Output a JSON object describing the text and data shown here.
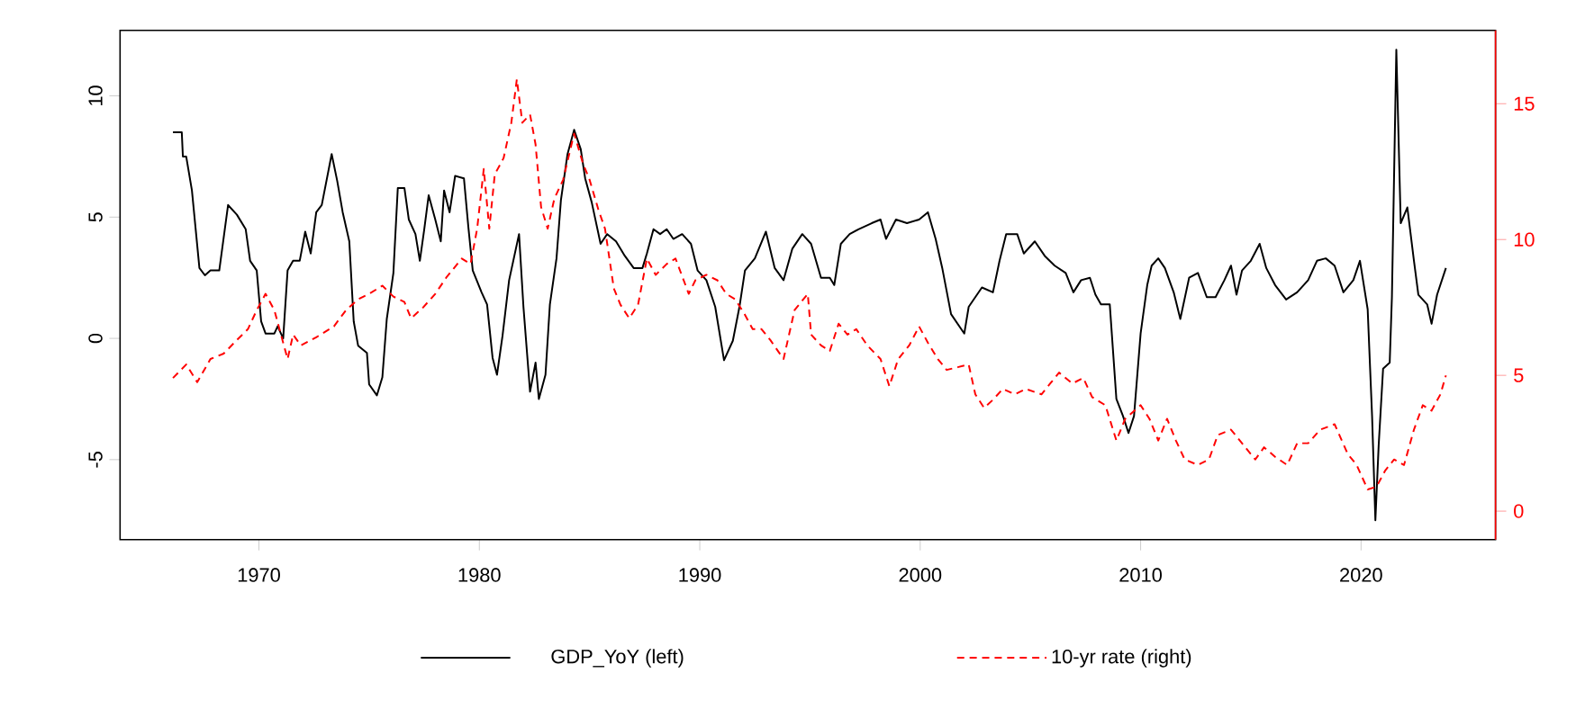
{
  "chart_data": {
    "type": "line",
    "xlim": [
      1963.7,
      2026.1
    ],
    "xticks": [
      1970,
      1980,
      1990,
      2000,
      2010,
      2020
    ],
    "ylim": [
      -8.3,
      12.7
    ],
    "yticks": [
      -5,
      0,
      5,
      10
    ],
    "y2lim": [
      -1.05,
      17.7
    ],
    "y2ticks": [
      0,
      5,
      10,
      15
    ],
    "legend": "bottom",
    "series": [
      {
        "name": "GDP_YoY (left)",
        "color": "#000000",
        "line_style": "solid",
        "x": [
          1966.1,
          1966.5,
          1966.55,
          1966.7,
          1966.96,
          1967.3,
          1967.55,
          1967.8,
          1968.2,
          1968.6,
          1969.0,
          1969.4,
          1969.6,
          1969.9,
          1970.1,
          1970.3,
          1970.7,
          1970.85,
          1971.1,
          1971.3,
          1971.55,
          1971.85,
          1972.1,
          1972.35,
          1972.6,
          1972.85,
          1973.3,
          1973.55,
          1973.8,
          1974.1,
          1974.3,
          1974.5,
          1974.9,
          1975.0,
          1975.35,
          1975.6,
          1975.8,
          1976.1,
          1976.3,
          1976.6,
          1976.8,
          1977.1,
          1977.3,
          1977.5,
          1977.7,
          1978.0,
          1978.25,
          1978.4,
          1978.65,
          1978.9,
          1979.3,
          1979.5,
          1979.7,
          1980.1,
          1980.35,
          1980.6,
          1980.8,
          1981.05,
          1981.35,
          1981.8,
          1982.0,
          1982.3,
          1982.55,
          1982.7,
          1983.0,
          1983.2,
          1983.5,
          1983.7,
          1984.0,
          1984.3,
          1984.6,
          1984.8,
          1985.1,
          1985.5,
          1985.8,
          1986.2,
          1986.6,
          1987.0,
          1987.4,
          1987.6,
          1987.9,
          1988.2,
          1988.5,
          1988.8,
          1989.2,
          1989.6,
          1989.9,
          1990.3,
          1990.7,
          1991.1,
          1991.5,
          1991.8,
          1992.05,
          1992.5,
          1993.0,
          1993.4,
          1993.8,
          1994.2,
          1994.65,
          1995.05,
          1995.5,
          1995.9,
          1996.1,
          1996.4,
          1996.8,
          1997.2,
          1997.8,
          1998.2,
          1998.45,
          1998.9,
          1999.4,
          1999.95,
          2000.35,
          2000.7,
          2001.0,
          2001.4,
          2001.7,
          2002.0,
          2002.2,
          2002.5,
          2002.8,
          2003.3,
          2003.6,
          2003.9,
          2004.4,
          2004.7,
          2005.2,
          2005.65,
          2006.1,
          2006.6,
          2006.95,
          2007.3,
          2007.7,
          2007.95,
          2008.2,
          2008.6,
          2008.9,
          2009.2,
          2009.45,
          2009.7,
          2010.0,
          2010.3,
          2010.5,
          2010.8,
          2011.1,
          2011.5,
          2011.8,
          2012.2,
          2012.6,
          2013.0,
          2013.4,
          2013.8,
          2014.1,
          2014.35,
          2014.6,
          2015.0,
          2015.4,
          2015.7,
          2016.1,
          2016.6,
          2017.1,
          2017.6,
          2018.0,
          2018.4,
          2018.8,
          2019.2,
          2019.65,
          2019.95,
          2020.3,
          2020.5,
          2020.65,
          2020.8,
          2021.0,
          2021.3,
          2021.4,
          2021.6,
          2021.8,
          2022.1,
          2022.4,
          2022.6,
          2023.0,
          2023.2,
          2023.45,
          2023.85
        ],
        "values": [
          8.5,
          8.5,
          7.5,
          7.5,
          6.1,
          2.9,
          2.6,
          2.8,
          2.8,
          5.5,
          5.1,
          4.5,
          3.2,
          2.8,
          0.7,
          0.2,
          0.2,
          0.5,
          0.0,
          2.8,
          3.2,
          3.2,
          4.4,
          3.5,
          5.2,
          5.5,
          7.6,
          6.5,
          5.2,
          4.0,
          0.7,
          -0.3,
          -0.6,
          -1.9,
          -2.35,
          -1.6,
          0.8,
          2.7,
          6.2,
          6.2,
          4.9,
          4.3,
          3.2,
          4.5,
          5.9,
          4.9,
          4.0,
          6.1,
          5.2,
          6.7,
          6.6,
          4.6,
          2.8,
          1.9,
          1.4,
          -0.8,
          -1.5,
          0.1,
          2.4,
          4.3,
          1.3,
          -2.2,
          -1.0,
          -2.5,
          -1.5,
          1.4,
          3.3,
          5.7,
          7.6,
          8.6,
          7.8,
          6.6,
          5.6,
          3.9,
          4.3,
          4.0,
          3.4,
          2.9,
          2.9,
          3.5,
          4.5,
          4.3,
          4.5,
          4.1,
          4.3,
          3.9,
          2.8,
          2.4,
          1.3,
          -0.9,
          -0.1,
          1.3,
          2.8,
          3.3,
          4.4,
          2.9,
          2.4,
          3.7,
          4.3,
          3.9,
          2.5,
          2.5,
          2.2,
          3.9,
          4.3,
          4.5,
          4.75,
          4.9,
          4.1,
          4.9,
          4.75,
          4.9,
          5.2,
          4.1,
          2.9,
          1.0,
          0.6,
          0.2,
          1.3,
          1.7,
          2.1,
          1.9,
          3.2,
          4.3,
          4.3,
          3.5,
          4.0,
          3.4,
          3.0,
          2.7,
          1.9,
          2.4,
          2.5,
          1.8,
          1.4,
          1.4,
          -2.5,
          -3.2,
          -3.9,
          -3.2,
          0.2,
          2.2,
          3.0,
          3.3,
          2.9,
          1.9,
          0.8,
          2.5,
          2.7,
          1.7,
          1.7,
          2.4,
          3.0,
          1.8,
          2.8,
          3.2,
          3.9,
          2.9,
          2.2,
          1.6,
          1.9,
          2.4,
          3.2,
          3.3,
          3.0,
          1.9,
          2.4,
          3.2,
          1.2,
          -3.2,
          -7.5,
          -4.4,
          -1.25,
          -1.0,
          1.7,
          11.9,
          4.75,
          5.4,
          3.2,
          1.8,
          1.4,
          0.6,
          1.8,
          2.9
        ]
      },
      {
        "name": "10-yr rate (right)",
        "color": "#ff0000",
        "line_style": "dashed",
        "axis": "y2",
        "x": [
          1966.1,
          1966.7,
          1967.2,
          1967.8,
          1968.4,
          1969.0,
          1969.5,
          1969.9,
          1970.3,
          1970.7,
          1971.3,
          1971.55,
          1971.9,
          1972.6,
          1973.4,
          1973.95,
          1974.5,
          1975.0,
          1975.6,
          1976.1,
          1976.6,
          1976.9,
          1977.45,
          1978.0,
          1978.5,
          1979.2,
          1979.6,
          1979.9,
          1980.2,
          1980.45,
          1980.7,
          1981.1,
          1981.45,
          1981.7,
          1981.95,
          1982.3,
          1982.55,
          1982.8,
          1983.1,
          1983.4,
          1983.8,
          1984.3,
          1984.7,
          1985.0,
          1985.4,
          1985.7,
          1986.1,
          1986.4,
          1986.8,
          1987.2,
          1987.6,
          1988.0,
          1988.5,
          1988.9,
          1989.5,
          1989.8,
          1990.3,
          1990.8,
          1991.2,
          1991.6,
          1992.0,
          1992.4,
          1992.8,
          1993.2,
          1993.8,
          1994.3,
          1994.9,
          1995.05,
          1995.5,
          1995.9,
          1996.3,
          1996.7,
          1997.1,
          1997.6,
          1998.2,
          1998.6,
          1999.0,
          1999.5,
          1999.95,
          2000.35,
          2000.8,
          2001.2,
          2001.7,
          2002.2,
          2002.5,
          2002.9,
          2003.3,
          2003.75,
          2004.3,
          2004.8,
          2005.5,
          2005.9,
          2006.3,
          2006.9,
          2007.4,
          2007.8,
          2008.4,
          2008.9,
          2009.3,
          2010.0,
          2010.4,
          2010.8,
          2011.2,
          2011.6,
          2012.0,
          2012.6,
          2013.1,
          2013.5,
          2014.1,
          2014.6,
          2015.2,
          2015.6,
          2016.1,
          2016.65,
          2017.1,
          2017.6,
          2018.15,
          2018.8,
          2019.4,
          2019.8,
          2020.3,
          2020.7,
          2021.1,
          2021.5,
          2021.95,
          2022.4,
          2022.8,
          2023.2,
          2023.6,
          2023.85
        ],
        "values": [
          4.9,
          5.4,
          4.75,
          5.6,
          5.8,
          6.3,
          6.7,
          7.4,
          8.0,
          7.4,
          5.6,
          6.5,
          6.1,
          6.4,
          6.8,
          7.4,
          7.8,
          8.0,
          8.3,
          7.9,
          7.7,
          7.1,
          7.5,
          8.0,
          8.6,
          9.3,
          9.1,
          10.4,
          12.6,
          10.4,
          12.4,
          13.0,
          14.3,
          15.9,
          14.3,
          14.6,
          13.5,
          11.2,
          10.4,
          11.5,
          12.2,
          13.9,
          12.8,
          12.2,
          11.1,
          10.4,
          8.2,
          7.6,
          7.1,
          7.6,
          9.3,
          8.7,
          9.1,
          9.3,
          8.0,
          8.5,
          8.7,
          8.5,
          8.0,
          7.8,
          7.3,
          6.7,
          6.7,
          6.3,
          5.6,
          7.4,
          8.0,
          6.5,
          6.1,
          5.9,
          6.9,
          6.5,
          6.7,
          6.1,
          5.6,
          4.6,
          5.6,
          6.1,
          6.8,
          6.2,
          5.6,
          5.2,
          5.3,
          5.4,
          4.3,
          3.8,
          4.1,
          4.5,
          4.3,
          4.5,
          4.3,
          4.7,
          5.1,
          4.7,
          4.9,
          4.2,
          3.9,
          2.6,
          3.4,
          3.9,
          3.4,
          2.6,
          3.4,
          2.6,
          1.9,
          1.7,
          1.9,
          2.8,
          3.0,
          2.5,
          1.9,
          2.35,
          2.0,
          1.7,
          2.5,
          2.5,
          3.0,
          3.2,
          2.1,
          1.7,
          0.8,
          0.9,
          1.5,
          1.9,
          1.7,
          3.0,
          3.9,
          3.7,
          4.3,
          5.0
        ]
      }
    ]
  }
}
